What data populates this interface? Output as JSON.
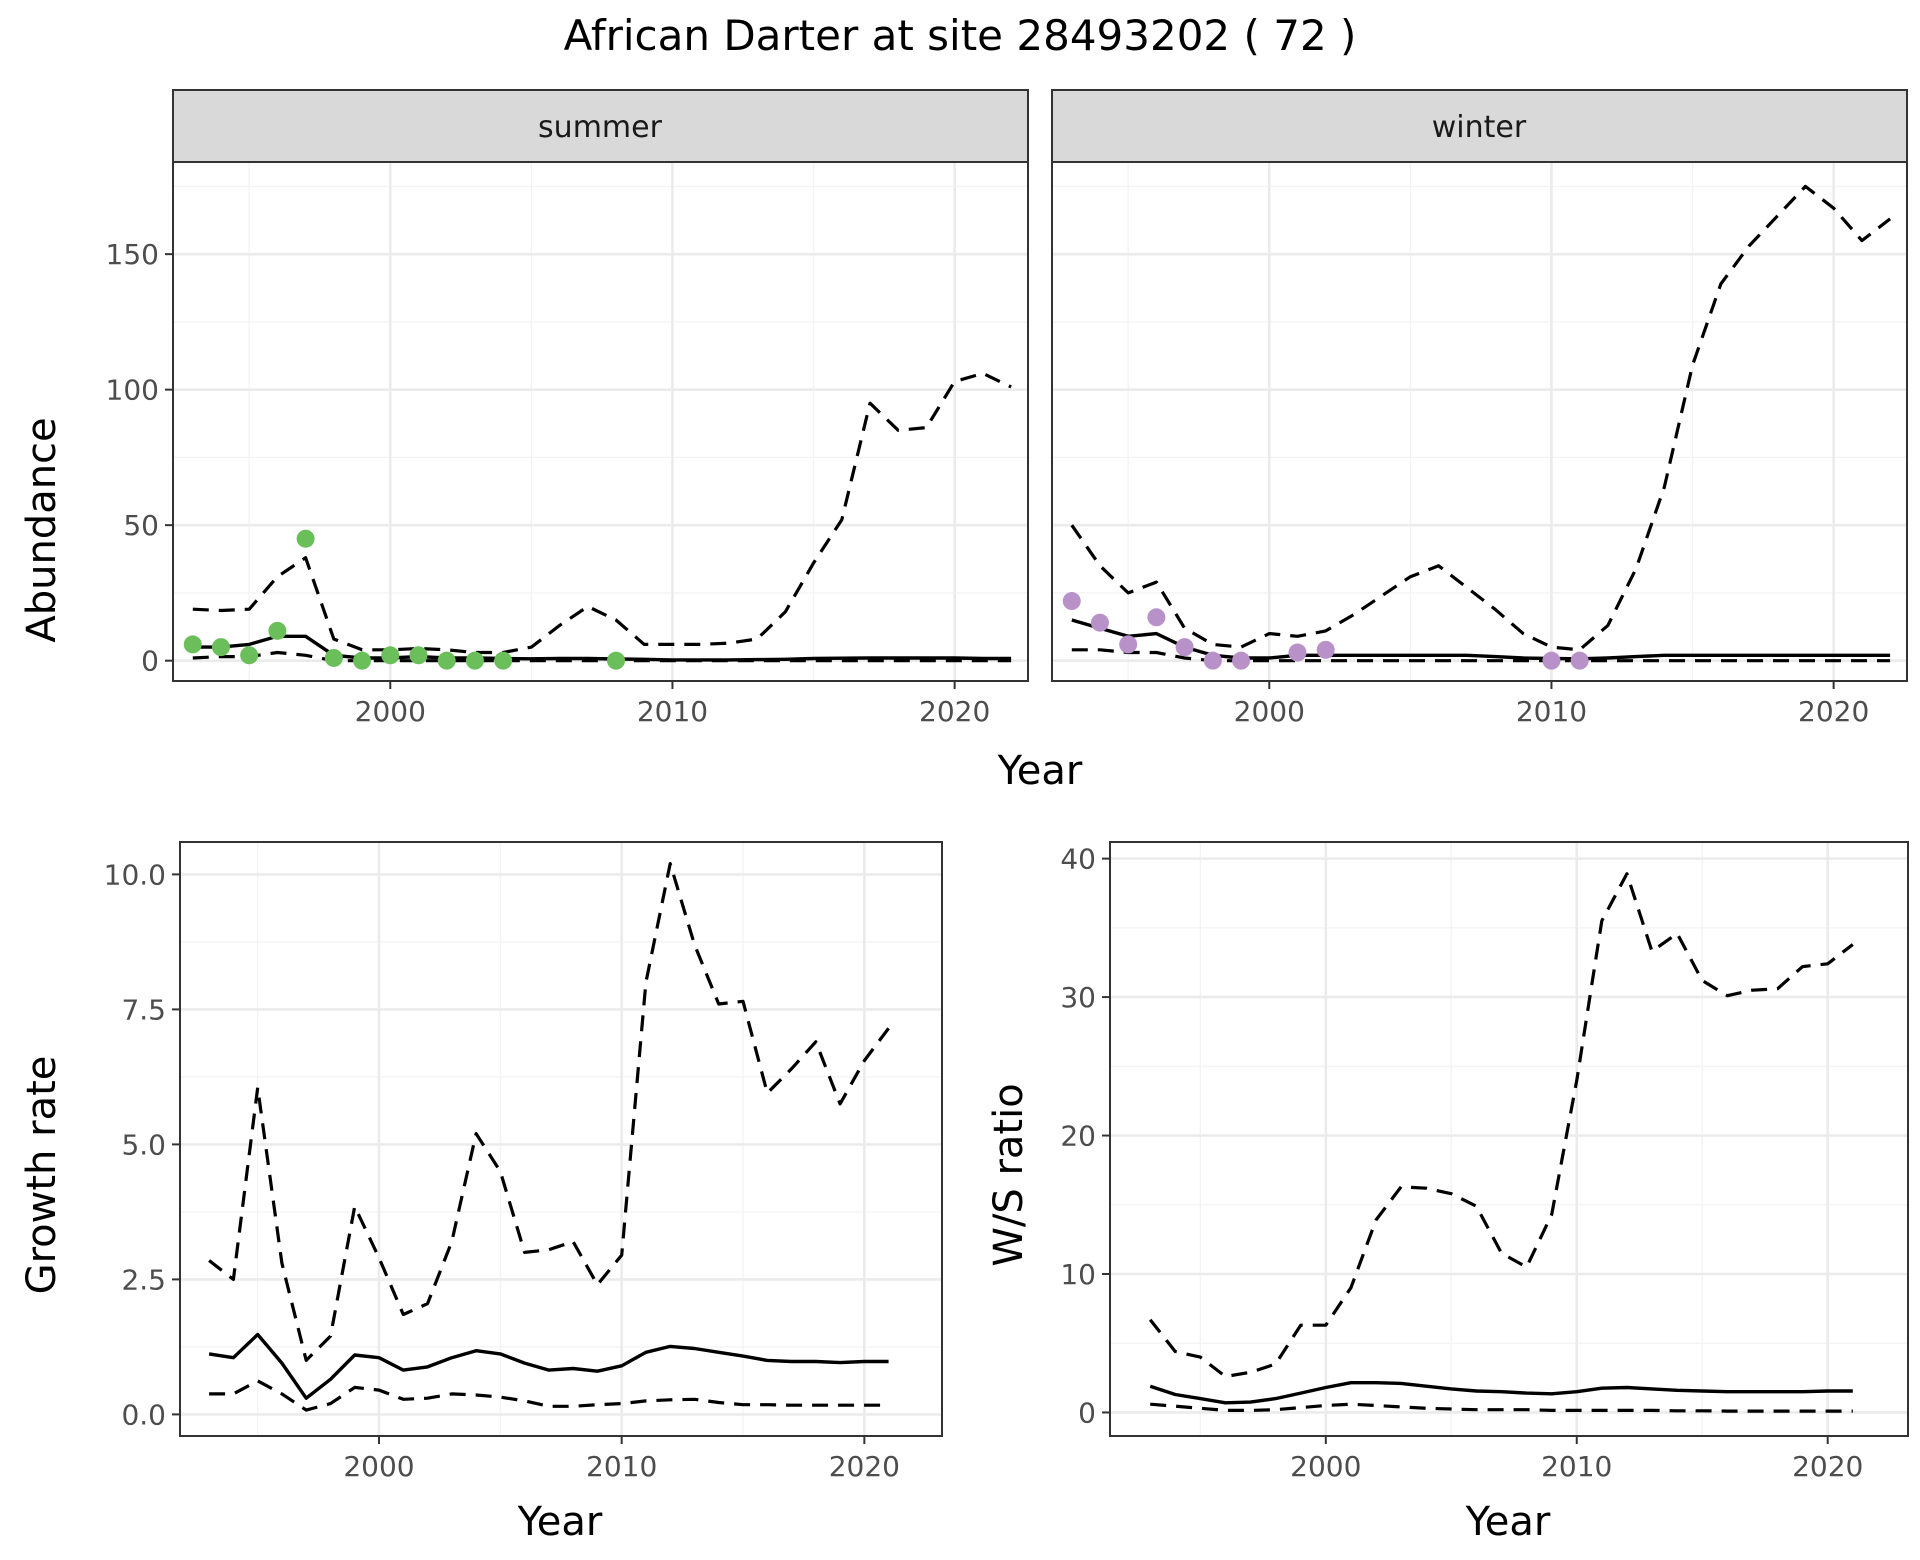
{
  "title": "African Darter at site 28493202 ( 72 )",
  "colors": {
    "summer": "#6abf5a",
    "winter": "#b891c9"
  },
  "chart_data": [
    {
      "id": "abundance",
      "type": "line",
      "facets": [
        "summer",
        "winter"
      ],
      "xlabel": "Year",
      "ylabel": "Abundance",
      "xlim": [
        1992.3,
        2022.6
      ],
      "ylim": [
        -7.5,
        184
      ],
      "xticks": [
        2000,
        2010,
        2020
      ],
      "yticks": [
        0,
        50,
        100,
        150
      ],
      "panels": {
        "summer": {
          "years": [
            1993,
            1994,
            1995,
            1996,
            1997,
            1998,
            1999,
            2000,
            2001,
            2002,
            2003,
            2004,
            2005,
            2006,
            2007,
            2008,
            2009,
            2010,
            2011,
            2012,
            2013,
            2014,
            2015,
            2016,
            2017,
            2018,
            2019,
            2020,
            2021,
            2022
          ],
          "mean": [
            5,
            5,
            6,
            9,
            9,
            2,
            1,
            1,
            1.5,
            1,
            1,
            0.8,
            0.7,
            0.8,
            0.8,
            0.6,
            0.5,
            0.3,
            0.3,
            0.3,
            0.4,
            0.5,
            0.8,
            0.9,
            1,
            1,
            1,
            1,
            0.8,
            0.8
          ],
          "upper": [
            19,
            18.5,
            19,
            31,
            38,
            8,
            4,
            4,
            4.5,
            4,
            3,
            3,
            5,
            13,
            20,
            15,
            6,
            6,
            6,
            6.5,
            8,
            18,
            36,
            52,
            95,
            85,
            86,
            103,
            106,
            101
          ],
          "lower": [
            1,
            1.5,
            1.5,
            3,
            2,
            0,
            0,
            0,
            0,
            0,
            0,
            0,
            0,
            0,
            0,
            0,
            0,
            0,
            0,
            0,
            0,
            0,
            0,
            0,
            0,
            0,
            0,
            0,
            0,
            0
          ],
          "obs_years": [
            1993,
            1994,
            1995,
            1996,
            1997,
            1998,
            1999,
            2000,
            2001,
            2002,
            2003,
            2004,
            2008
          ],
          "obs": [
            6,
            5,
            2,
            11,
            45,
            1,
            0,
            2,
            2,
            0,
            0,
            0,
            0
          ]
        },
        "winter": {
          "years": [
            1993,
            1994,
            1995,
            1996,
            1997,
            1998,
            1999,
            2000,
            2001,
            2002,
            2003,
            2004,
            2005,
            2006,
            2007,
            2008,
            2009,
            2010,
            2011,
            2012,
            2013,
            2014,
            2015,
            2016,
            2017,
            2018,
            2019,
            2020,
            2021,
            2022
          ],
          "mean": [
            15,
            12,
            9,
            10,
            5,
            2,
            1,
            1,
            2,
            2,
            2,
            2,
            2,
            2,
            2,
            1.5,
            1,
            0.8,
            0.7,
            1,
            1.5,
            2,
            2,
            2,
            2,
            2,
            2,
            2,
            2,
            2
          ],
          "upper": [
            50,
            35,
            25,
            29,
            12,
            6,
            5,
            10,
            9,
            11,
            17,
            24,
            31,
            35,
            27,
            19,
            10,
            5,
            4,
            13,
            34,
            64,
            109,
            139,
            153,
            164,
            175,
            167,
            155,
            163
          ],
          "lower": [
            4,
            4,
            3,
            3,
            1,
            0,
            0,
            0,
            0,
            0,
            0,
            0,
            0,
            0,
            0,
            0,
            0,
            0,
            0,
            0,
            0,
            0,
            0,
            0,
            0,
            0,
            0,
            0,
            0,
            0
          ],
          "obs_years": [
            1993,
            1994,
            1995,
            1996,
            1997,
            1998,
            1999,
            2001,
            2002,
            2010,
            2011
          ],
          "obs": [
            22,
            14,
            6,
            16,
            5,
            0,
            0,
            3,
            4,
            0,
            0
          ]
        }
      }
    },
    {
      "id": "growth",
      "type": "line",
      "xlabel": "Year",
      "ylabel": "Growth rate",
      "xlim": [
        1991.8,
        2023.2
      ],
      "ylim": [
        -0.4,
        10.6
      ],
      "xticks": [
        2000,
        2010,
        2020
      ],
      "yticks": [
        0.0,
        2.5,
        5.0,
        7.5,
        10.0
      ],
      "ytick_labels": [
        "0.0",
        "2.5",
        "5.0",
        "7.5",
        "10.0"
      ],
      "years": [
        1993,
        1994,
        1995,
        1996,
        1997,
        1998,
        1999,
        2000,
        2001,
        2002,
        2003,
        2004,
        2005,
        2006,
        2007,
        2008,
        2009,
        2010,
        2011,
        2012,
        2013,
        2014,
        2015,
        2016,
        2017,
        2018,
        2019,
        2020,
        2021
      ],
      "mean": [
        1.12,
        1.05,
        1.48,
        0.95,
        0.3,
        0.65,
        1.1,
        1.05,
        0.82,
        0.88,
        1.05,
        1.18,
        1.12,
        0.95,
        0.82,
        0.85,
        0.8,
        0.9,
        1.15,
        1.26,
        1.22,
        1.15,
        1.08,
        1.0,
        0.98,
        0.98,
        0.96,
        0.98,
        0.98
      ],
      "upper": [
        2.85,
        2.5,
        6.05,
        2.8,
        1.0,
        1.45,
        3.85,
        2.9,
        1.85,
        2.05,
        3.2,
        5.2,
        4.5,
        3.0,
        3.05,
        3.2,
        2.4,
        2.95,
        8.0,
        10.2,
        8.7,
        7.6,
        7.65,
        5.95,
        6.4,
        6.9,
        5.75,
        6.55,
        7.15
      ],
      "lower": [
        0.38,
        0.38,
        0.62,
        0.38,
        0.08,
        0.2,
        0.5,
        0.45,
        0.28,
        0.3,
        0.38,
        0.36,
        0.32,
        0.25,
        0.15,
        0.15,
        0.18,
        0.2,
        0.25,
        0.27,
        0.28,
        0.22,
        0.18,
        0.18,
        0.17,
        0.17,
        0.17,
        0.17,
        0.17
      ]
    },
    {
      "id": "ws_ratio",
      "type": "line",
      "xlabel": "Year",
      "ylabel": "W/S ratio",
      "xlim": [
        1991.4,
        2023.2
      ],
      "ylim": [
        -1.7,
        41.2
      ],
      "xticks": [
        2000,
        2010,
        2020
      ],
      "yticks": [
        0,
        10,
        20,
        30,
        40
      ],
      "years": [
        1993,
        1994,
        1995,
        1996,
        1997,
        1998,
        1999,
        2000,
        2001,
        2002,
        2003,
        2004,
        2005,
        2006,
        2007,
        2008,
        2009,
        2010,
        2011,
        2012,
        2013,
        2014,
        2015,
        2016,
        2017,
        2018,
        2019,
        2020,
        2021
      ],
      "mean": [
        1.9,
        1.3,
        1.0,
        0.7,
        0.75,
        1.0,
        1.4,
        1.8,
        2.15,
        2.15,
        2.1,
        1.9,
        1.7,
        1.55,
        1.5,
        1.4,
        1.35,
        1.5,
        1.75,
        1.8,
        1.7,
        1.6,
        1.55,
        1.5,
        1.5,
        1.5,
        1.5,
        1.55,
        1.55
      ],
      "upper": [
        6.7,
        4.4,
        4.0,
        2.6,
        2.9,
        3.5,
        6.3,
        6.3,
        9.0,
        13.9,
        16.3,
        16.2,
        15.8,
        14.9,
        11.5,
        10.5,
        14.3,
        24.0,
        35.5,
        38.9,
        33.3,
        34.6,
        31.2,
        30.1,
        30.5,
        30.6,
        32.2,
        32.4,
        33.8
      ],
      "lower": [
        0.6,
        0.45,
        0.3,
        0.15,
        0.15,
        0.2,
        0.35,
        0.5,
        0.6,
        0.5,
        0.4,
        0.3,
        0.25,
        0.2,
        0.2,
        0.2,
        0.15,
        0.15,
        0.15,
        0.15,
        0.15,
        0.12,
        0.12,
        0.1,
        0.1,
        0.1,
        0.1,
        0.1,
        0.1
      ]
    }
  ]
}
